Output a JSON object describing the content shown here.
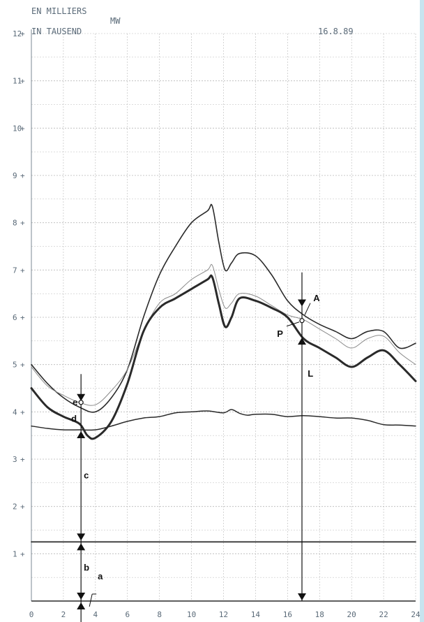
{
  "header": {
    "unit_fr": "EN MILLIERS",
    "unit_de": "IN TAUSEND",
    "unit": "MW",
    "date": "16.8.89"
  },
  "colors": {
    "border": "#c7e4ef",
    "grid": "#b9b9b9",
    "line": "#2a2a2a",
    "thin_line": "#8a8a8a",
    "text": "#5a6a78"
  },
  "chart_data": {
    "type": "line",
    "xlim": [
      0,
      24
    ],
    "ylim": [
      0,
      12
    ],
    "x_ticks": [
      0,
      2,
      4,
      6,
      8,
      10,
      12,
      14,
      16,
      18,
      20,
      22,
      24
    ],
    "y_ticks": [
      1,
      2,
      3,
      4,
      5,
      6,
      7,
      8,
      9,
      10,
      11,
      12
    ],
    "grid": true,
    "series": [
      {
        "style": "upper",
        "x": [
          0,
          1,
          2,
          3,
          4,
          5,
          6,
          7,
          8,
          9,
          10,
          11,
          11.3,
          11.7,
          12.1,
          12.5,
          13,
          14,
          15,
          16,
          17,
          18,
          19,
          20,
          21,
          22,
          23,
          24
        ],
        "y": [
          5.0,
          4.6,
          4.3,
          4.1,
          4.0,
          4.3,
          4.9,
          6.0,
          6.9,
          7.5,
          8.0,
          8.25,
          8.35,
          7.6,
          7.0,
          7.15,
          7.35,
          7.3,
          6.9,
          6.35,
          6.05,
          5.85,
          5.7,
          5.55,
          5.7,
          5.7,
          5.35,
          5.45
        ]
      },
      {
        "style": "middle",
        "x": [
          0,
          1,
          2,
          3,
          4,
          5,
          6,
          7,
          8,
          9,
          10,
          11,
          11.3,
          11.7,
          12.1,
          12.5,
          13,
          14,
          15,
          16,
          17,
          18,
          19,
          20,
          21,
          22,
          23,
          24
        ],
        "y": [
          4.95,
          4.55,
          4.35,
          4.2,
          4.15,
          4.45,
          4.9,
          5.7,
          6.3,
          6.5,
          6.8,
          7.0,
          7.1,
          6.6,
          6.2,
          6.3,
          6.5,
          6.45,
          6.25,
          6.05,
          5.95,
          5.75,
          5.55,
          5.35,
          5.55,
          5.6,
          5.25,
          5.0
        ]
      },
      {
        "style": "bold",
        "x": [
          0,
          1,
          2,
          3,
          3.5,
          4,
          5,
          6,
          7,
          8,
          9,
          10,
          11,
          11.3,
          11.7,
          12.1,
          12.5,
          13,
          14,
          15,
          16,
          17,
          18,
          19,
          20,
          21,
          22,
          23,
          24
        ],
        "y": [
          4.5,
          4.1,
          3.9,
          3.75,
          3.5,
          3.45,
          3.8,
          4.6,
          5.7,
          6.2,
          6.4,
          6.6,
          6.8,
          6.85,
          6.3,
          5.8,
          6.0,
          6.4,
          6.35,
          6.2,
          6.0,
          5.55,
          5.35,
          5.15,
          4.95,
          5.15,
          5.3,
          5.0,
          4.65
        ]
      },
      {
        "style": "base",
        "x": [
          0,
          1,
          2,
          3,
          4,
          5,
          6,
          7,
          8,
          9,
          10,
          11,
          12,
          12.5,
          13,
          13.5,
          14,
          15,
          16,
          17,
          18,
          19,
          20,
          21,
          22,
          23,
          24
        ],
        "y": [
          3.7,
          3.65,
          3.62,
          3.62,
          3.62,
          3.7,
          3.8,
          3.87,
          3.9,
          3.98,
          4.0,
          4.02,
          3.98,
          4.05,
          3.97,
          3.93,
          3.95,
          3.95,
          3.9,
          3.92,
          3.9,
          3.87,
          3.87,
          3.82,
          3.73,
          3.72,
          3.7
        ]
      },
      {
        "style": "flat",
        "x": [
          0,
          24
        ],
        "y": [
          1.25,
          1.25
        ]
      }
    ],
    "annotations": {
      "left_x": 3.1,
      "labels": [
        {
          "text": "e",
          "x": 3.1,
          "y": 4.2
        },
        {
          "text": "d",
          "x": 3.1,
          "y": 3.85
        },
        {
          "text": "c",
          "x": 3.1,
          "y": 2.65
        },
        {
          "text": "b",
          "x": 3.1,
          "y": 0.7
        },
        {
          "text": "a",
          "x": 3.1,
          "y": 0.25
        },
        {
          "text": "A",
          "x": 17.0,
          "y": 6.4
        },
        {
          "text": "P",
          "x": 17.0,
          "y": 5.85
        },
        {
          "text": "L",
          "x": 17.0,
          "y": 4.8
        }
      ],
      "right_x": 16.9,
      "right_point_y": 5.93
    }
  }
}
